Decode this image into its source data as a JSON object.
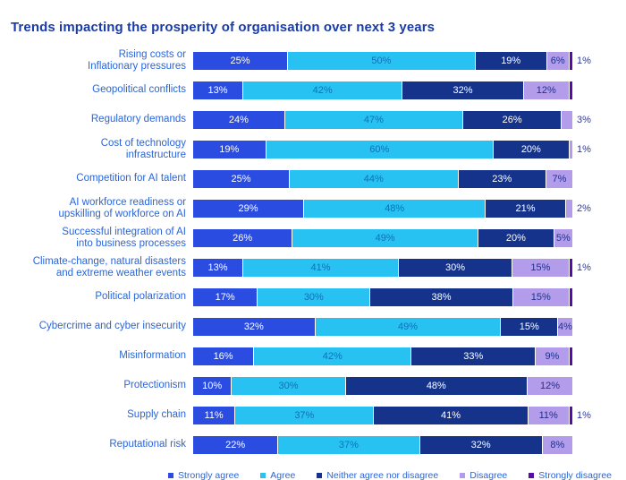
{
  "title": "Trends impacting the prosperity of organisation over next 3 years",
  "colors": {
    "title_text": "#1b3ca6",
    "category_text": "#2a65d9",
    "outside_label_text": "#2e3a99",
    "label_on_agree": "#0d72b8",
    "label_on_disagree": "#20308f",
    "label_on_dark": "#ffffff"
  },
  "chart_data": {
    "type": "bar",
    "orientation": "horizontal-stacked",
    "unit": "%",
    "title": "Trends impacting the prosperity of organisation over next 3 years",
    "legend_position": "bottom",
    "series_names": [
      "Strongly agree",
      "Agree",
      "Neither agree nor disagree",
      "Disagree",
      "Strongly disagree"
    ],
    "series_keys": [
      "strongly-agree",
      "agree",
      "neither-agree-nor-disagree",
      "disagree",
      "strongly-disagree"
    ],
    "series_colors": [
      "#2b4ce0",
      "#28c2f2",
      "#15338a",
      "#b39ce9",
      "#560da5"
    ],
    "series_label_colors": [
      "#ffffff",
      "#0d72b8",
      "#ffffff",
      "#20308f",
      "#ffffff"
    ],
    "rows": [
      {
        "category": "Rising costs or Inflationary pressures",
        "label_lines": [
          "Rising costs or",
          "Inflationary pressures"
        ],
        "values": [
          25,
          50,
          19,
          6,
          1
        ],
        "outside_label": "1%"
      },
      {
        "category": "Geopolitical conflicts",
        "label_lines": [
          "Geopolitical conflicts"
        ],
        "values": [
          13,
          42,
          32,
          12,
          1
        ],
        "outside_label": ""
      },
      {
        "category": "Regulatory demands",
        "label_lines": [
          "Regulatory demands"
        ],
        "values": [
          24,
          47,
          26,
          3,
          0
        ],
        "outside_label": "3%"
      },
      {
        "category": "Cost of technology infrastructure",
        "label_lines": [
          "Cost of technology",
          "infrastructure"
        ],
        "values": [
          19,
          60,
          20,
          1,
          0
        ],
        "outside_label": "1%"
      },
      {
        "category": "Competition for AI talent",
        "label_lines": [
          "Competition for AI talent"
        ],
        "values": [
          25,
          44,
          23,
          7,
          0
        ],
        "outside_label": ""
      },
      {
        "category": "AI workforce readiness or upskilling of workforce on AI",
        "label_lines": [
          "AI workforce readiness or",
          "upskilling of workforce on AI"
        ],
        "values": [
          29,
          48,
          21,
          2,
          0
        ],
        "outside_label": "2%"
      },
      {
        "category": "Successful integration of AI into business processes",
        "label_lines": [
          "Successful integration of AI",
          "into business processes"
        ],
        "values": [
          26,
          49,
          20,
          5,
          0
        ],
        "outside_label": ""
      },
      {
        "category": "Climate-change, natural disasters and extreme weather events",
        "label_lines": [
          "Climate-change, natural disasters",
          "and extreme weather events"
        ],
        "values": [
          13,
          41,
          30,
          15,
          1
        ],
        "outside_label": "1%"
      },
      {
        "category": "Political polarization",
        "label_lines": [
          "Political polarization"
        ],
        "values": [
          17,
          30,
          38,
          15,
          1
        ],
        "outside_label": ""
      },
      {
        "category": "Cybercrime and cyber insecurity",
        "label_lines": [
          "Cybercrime and cyber insecurity"
        ],
        "values": [
          32,
          49,
          15,
          4,
          0
        ],
        "outside_label": ""
      },
      {
        "category": "Misinformation",
        "label_lines": [
          "Misinformation"
        ],
        "values": [
          16,
          42,
          33,
          9,
          1
        ],
        "outside_label": ""
      },
      {
        "category": "Protectionism",
        "label_lines": [
          "Protectionism"
        ],
        "values": [
          10,
          30,
          48,
          12,
          0
        ],
        "outside_label": ""
      },
      {
        "category": "Supply chain",
        "label_lines": [
          "Supply chain"
        ],
        "values": [
          11,
          37,
          41,
          11,
          1
        ],
        "outside_label": "1%"
      },
      {
        "category": "Reputational risk",
        "label_lines": [
          "Reputational risk"
        ],
        "values": [
          22,
          37,
          32,
          8,
          0
        ],
        "outside_label": ""
      }
    ],
    "inside_label_min_value": 4
  },
  "legend": {
    "items": [
      {
        "label": "Strongly agree",
        "color": "#2b4ce0"
      },
      {
        "label": "Agree",
        "color": "#28c2f2"
      },
      {
        "label": "Neither agree nor disagree",
        "color": "#15338a"
      },
      {
        "label": "Disagree",
        "color": "#b39ce9"
      },
      {
        "label": "Strongly disagree",
        "color": "#560da5"
      }
    ]
  }
}
